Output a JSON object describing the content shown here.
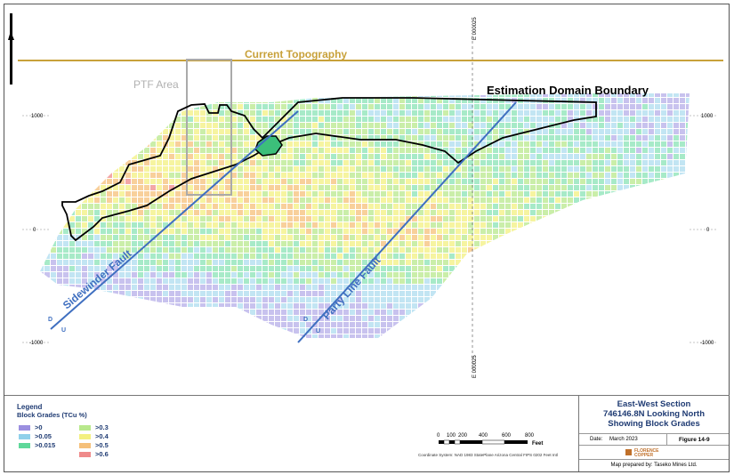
{
  "map": {
    "topography_label": "Current Topography",
    "ptf_label": "PTF Area",
    "boundary_label": "Estimation Domain Boundary",
    "sidewinder_label": "Sidewinder Fault",
    "partyline_label": "Party Line Fault",
    "fault_d": "D",
    "fault_u": "U",
    "easting_label": "E 000025",
    "elevations": [
      "1000",
      "0",
      "-1000"
    ],
    "north_label": "N",
    "colors": {
      "topography": "#c8a13a",
      "fault": "#3f6fc0",
      "boundary": "#000000",
      "ptf": "#aaaaaa"
    }
  },
  "legend": {
    "title": "Legend",
    "subtitle": "Block Grades (TCu %)",
    "items": [
      {
        "label": ">0",
        "color": "#9b8fe0"
      },
      {
        "label": ">0.05",
        "color": "#8fd0ea"
      },
      {
        "label": ">0.015",
        "color": "#5fd89a"
      },
      {
        "label": ">0.3",
        "color": "#b8e88c"
      },
      {
        "label": ">0.4",
        "color": "#f3f080"
      },
      {
        "label": ">0.5",
        "color": "#f5c07a"
      },
      {
        "label": ">0.6",
        "color": "#ef8a8a"
      }
    ]
  },
  "scale": {
    "ticks": [
      "0",
      "100",
      "200",
      "400",
      "600",
      "800"
    ],
    "unit": "Feet"
  },
  "coordinate_system": "Coordinate System: NAD 1983 StatePlane Arizona Central FIPS 0202 Feet Intl",
  "titleblock": {
    "line1": "East-West Section",
    "line2": "746146.8N Looking North",
    "line3": "Showing Block Grades",
    "date_label": "Date:",
    "date_value": "March 2023",
    "figure": "Figure 14-9",
    "company": "FLORENCE COPPER",
    "prepared": "Map prepared by: Taseko Mines Ltd."
  }
}
